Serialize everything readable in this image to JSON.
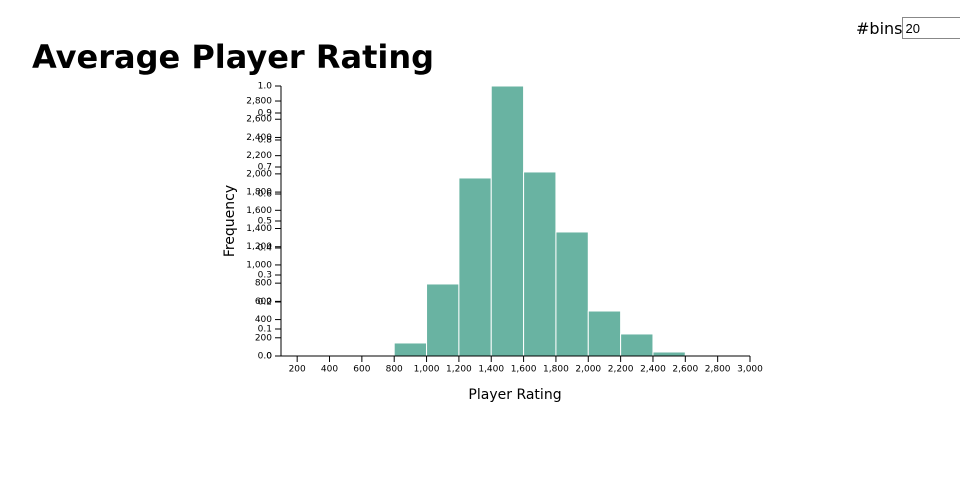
{
  "controls": {
    "bins_label": "#bins",
    "bins_value": "20"
  },
  "chart_data": {
    "type": "histogram",
    "title": "Average Player Rating",
    "xlabel": "Player Rating",
    "ylabel": "Frequency",
    "color": "#69b3a2",
    "bins": [
      800,
      1000,
      1200,
      1400,
      1600,
      1800,
      2000,
      2200,
      2400,
      2600,
      2800
    ],
    "counts": [
      143,
      791,
      1955,
      2965,
      2021,
      1362,
      494,
      242,
      44,
      11
    ],
    "xlim": [
      100,
      3000
    ],
    "xticks": [
      200,
      400,
      600,
      800,
      {
        "value": 1000,
        "label": "1,000"
      },
      {
        "value": 1200,
        "label": "1,200"
      },
      {
        "value": 1400,
        "label": "1,400"
      },
      {
        "value": 1600,
        "label": "1,600"
      },
      {
        "value": 1800,
        "label": "1,800"
      },
      {
        "value": 2000,
        "label": "2,000"
      },
      {
        "value": 2200,
        "label": "2,200"
      },
      {
        "value": 2400,
        "label": "2,400"
      },
      {
        "value": 2600,
        "label": "2,600"
      },
      {
        "value": 2800,
        "label": "2,800"
      },
      {
        "value": 3000,
        "label": "3,000"
      }
    ],
    "ylim": [
      0,
      2965
    ],
    "yticks": [
      0,
      200,
      400,
      600,
      800,
      {
        "value": 1000,
        "label": "1,000"
      },
      {
        "value": 1200,
        "label": "1,200"
      },
      {
        "value": 1400,
        "label": "1,400"
      },
      {
        "value": 1600,
        "label": "1,600"
      },
      {
        "value": 1800,
        "label": "1,800"
      },
      {
        "value": 2000,
        "label": "2,000"
      },
      {
        "value": 2200,
        "label": "2,200"
      },
      {
        "value": 2400,
        "label": "2,400"
      },
      {
        "value": 2600,
        "label": "2,600"
      },
      {
        "value": 2800,
        "label": "2,800"
      }
    ],
    "y2lim": [
      0,
      1
    ],
    "y2ticks": [
      {
        "value": 0,
        "label": "0.0"
      },
      0.1,
      0.2,
      0.3,
      0.4,
      0.5,
      0.6,
      0.7,
      0.8,
      0.9,
      {
        "value": 1,
        "label": "1.0"
      }
    ]
  }
}
